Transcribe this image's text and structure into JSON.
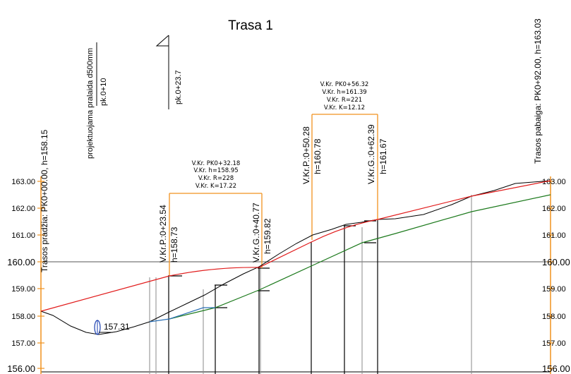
{
  "title": "Trasa 1",
  "colors": {
    "design_line": "#e11b1b",
    "ground_line": "#000000",
    "pipe_line": "#1d7a1d",
    "existing_pipe": "#2a6fb5",
    "accent": "#f0921e",
    "grid": "#555555"
  },
  "axis": {
    "left_labels": [
      "163.00",
      "162.00",
      "161.00",
      "160.00",
      "159.00",
      "158.00",
      "157.00",
      "156.00"
    ],
    "right_labels": [
      "163.00",
      "162.00",
      "161.00",
      "160.00",
      "159.00",
      "158.00",
      "157.00",
      "156.00"
    ]
  },
  "start_label": "Trasos pradžia: PK0+00.00, h=158.15",
  "end_label": "Trasos pabaiga: PK0+92.00, h=163.03",
  "annotations": {
    "pipe_note_line1": "projektuojama pralaida d500mm",
    "pipe_note_line2": "pk.0+10",
    "flag_label": "pk.0+23.7",
    "low_point": "157.31"
  },
  "curve1": {
    "start_line1": "V.Kr.P.:0+23.54",
    "start_line2": "h=158.73",
    "end_line1": "V.Kr.G.:0+40.77",
    "end_line2": "h=159.82",
    "box": [
      "V.Kr. PK0+32.18",
      "V.Kr. h=158.95",
      "V.Kr. R=228",
      "V.Kr. K=17.22"
    ]
  },
  "curve2": {
    "start_line1": "V.Kr.P.:0+50.28",
    "start_line2": "h=160.78",
    "end_line1": "V.Kr.G.:0+62.39",
    "end_line2": "h=161.67",
    "box": [
      "V.Kr. PK0+56.32",
      "V.Kr. h=161.39",
      "V.Kr. R=221",
      "V.Kr. K=12.12"
    ]
  }
}
